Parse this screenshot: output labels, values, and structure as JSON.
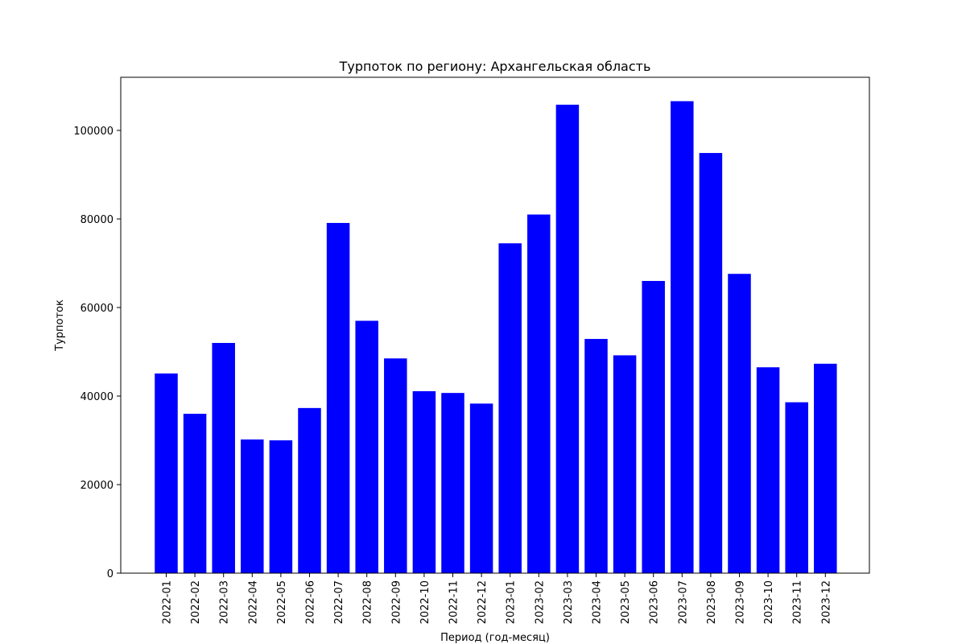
{
  "chart_data": {
    "type": "bar",
    "title": "Турпоток по региону: Архангельская область",
    "xlabel": "Период (год-месяц)",
    "ylabel": "Турпоток",
    "categories": [
      "2022-01",
      "2022-02",
      "2022-03",
      "2022-04",
      "2022-05",
      "2022-06",
      "2022-07",
      "2022-08",
      "2022-09",
      "2022-10",
      "2022-11",
      "2022-12",
      "2023-01",
      "2023-02",
      "2023-03",
      "2023-04",
      "2023-05",
      "2023-06",
      "2023-07",
      "2023-08",
      "2023-09",
      "2023-10",
      "2023-11",
      "2023-12"
    ],
    "values": [
      45100,
      36000,
      52000,
      30200,
      30000,
      37300,
      79100,
      57000,
      48500,
      41100,
      40700,
      38300,
      74500,
      81000,
      105800,
      52900,
      49200,
      66000,
      106600,
      94900,
      67600,
      46500,
      38600,
      47300
    ],
    "ylim": [
      0,
      112000
    ],
    "yticks": [
      0,
      20000,
      40000,
      60000,
      80000,
      100000
    ],
    "ytick_labels": [
      "0",
      "20000",
      "40000",
      "60000",
      "80000",
      "100000"
    ],
    "bar_color": "#0000ff",
    "grid": false,
    "legend": false
  }
}
